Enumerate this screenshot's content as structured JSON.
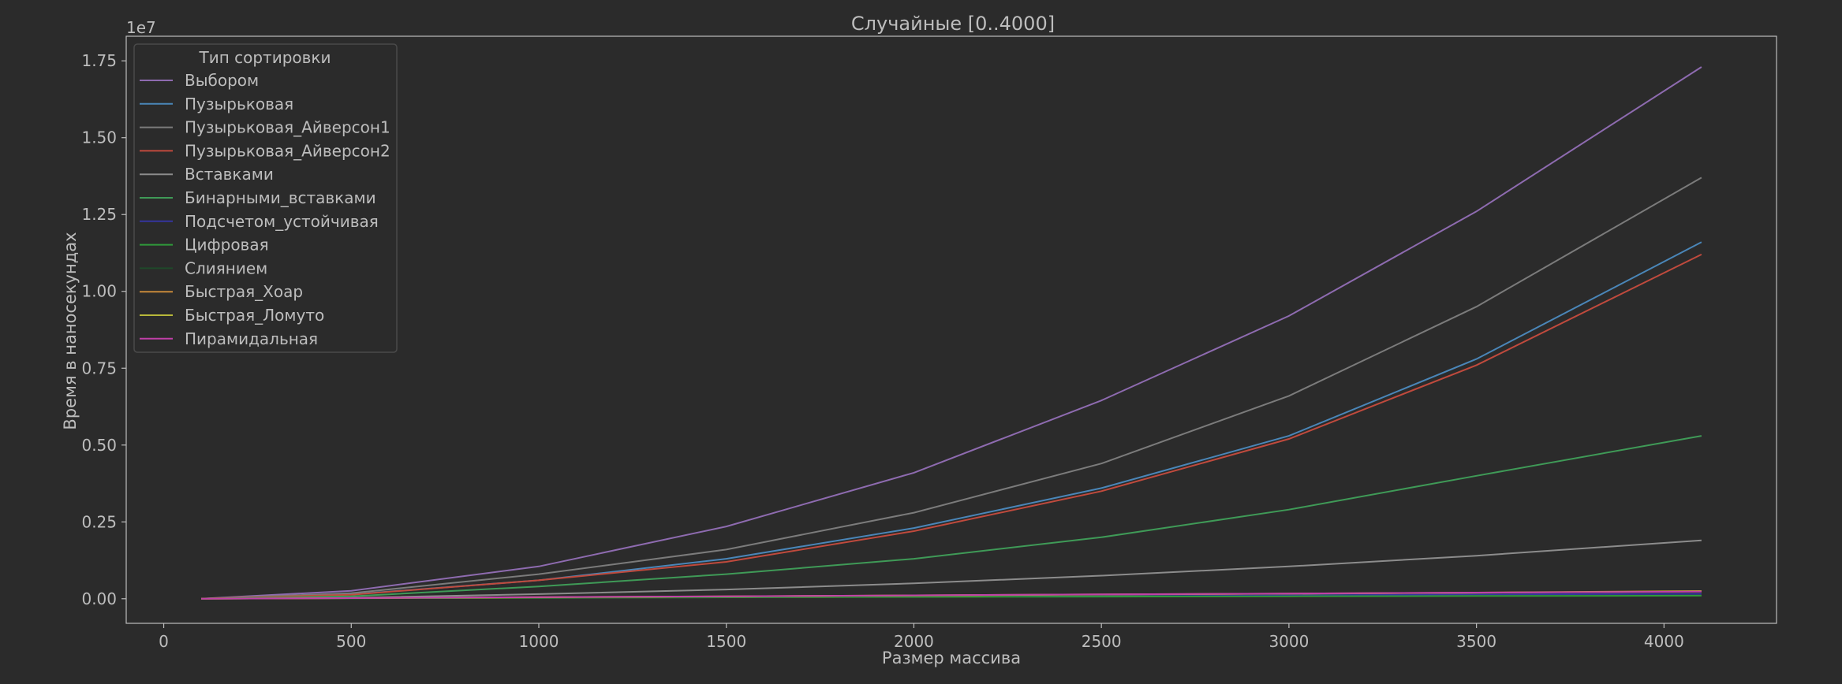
{
  "chart_data": {
    "type": "line",
    "title": "Случайные [0..4000]",
    "xlabel": "Размер массива",
    "ylabel": "Время в наносекундах",
    "y_offset_label": "1e7",
    "xlim": [
      -100,
      4300
    ],
    "ylim": [
      -800000,
      18300000
    ],
    "x_ticks": [
      0,
      500,
      1000,
      1500,
      2000,
      2500,
      3000,
      3500,
      4000
    ],
    "x_tick_labels": [
      "0",
      "500",
      "1000",
      "1500",
      "2000",
      "2500",
      "3000",
      "3500",
      "4000"
    ],
    "y_ticks": [
      0,
      2500000,
      5000000,
      7500000,
      10000000,
      12500000,
      15000000,
      17500000
    ],
    "y_tick_labels": [
      "0.00",
      "0.25",
      "0.50",
      "0.75",
      "1.00",
      "1.25",
      "1.50",
      "1.75"
    ],
    "grid": false,
    "legend_title": "Тип сортировки",
    "legend_position": "top-left",
    "x": [
      100,
      500,
      1000,
      1500,
      2000,
      2500,
      3000,
      3500,
      4100
    ],
    "series": [
      {
        "name": "Выбором",
        "color": "#8e6bb0",
        "values": [
          0,
          260000,
          1050000,
          2350000,
          4100000,
          6450000,
          9200000,
          12600000,
          17300000
        ]
      },
      {
        "name": "Пузырьковая",
        "color": "#4a86b8",
        "values": [
          0,
          140000,
          600000,
          1300000,
          2300000,
          3600000,
          5300000,
          7800000,
          11600000
        ]
      },
      {
        "name": "Пузырьковая_Айверсон1",
        "color": "#7b7b7b",
        "values": [
          0,
          180000,
          800000,
          1600000,
          2800000,
          4400000,
          6600000,
          9500000,
          13700000
        ]
      },
      {
        "name": "Пузырьковая_Айверсон2",
        "color": "#c04a3d",
        "values": [
          0,
          130000,
          600000,
          1200000,
          2200000,
          3500000,
          5200000,
          7600000,
          11200000
        ]
      },
      {
        "name": "Вставками",
        "color": "#8c8c8c",
        "values": [
          0,
          30000,
          150000,
          300000,
          500000,
          750000,
          1050000,
          1400000,
          1900000
        ]
      },
      {
        "name": "Бинарными_вставками",
        "color": "#3f9a57",
        "values": [
          0,
          80000,
          400000,
          800000,
          1300000,
          2000000,
          2900000,
          4000000,
          5300000
        ]
      },
      {
        "name": "Подсчетом_устойчивая",
        "color": "#3535a0",
        "values": [
          0,
          20000,
          40000,
          60000,
          80000,
          100000,
          120000,
          140000,
          160000
        ]
      },
      {
        "name": "Цифровая",
        "color": "#2f9a3a",
        "values": [
          0,
          15000,
          30000,
          45000,
          60000,
          70000,
          80000,
          90000,
          100000
        ]
      },
      {
        "name": "Слиянием",
        "color": "#1f4a2a",
        "values": [
          0,
          20000,
          45000,
          70000,
          100000,
          130000,
          160000,
          190000,
          230000
        ]
      },
      {
        "name": "Быстрая_Хоар",
        "color": "#c8893a",
        "values": [
          0,
          20000,
          50000,
          80000,
          110000,
          140000,
          170000,
          200000,
          250000
        ]
      },
      {
        "name": "Быстрая_Ломуто",
        "color": "#b8b83a",
        "values": [
          0,
          20000,
          45000,
          75000,
          105000,
          135000,
          165000,
          195000,
          240000
        ]
      },
      {
        "name": "Пирамидальная",
        "color": "#c040a8",
        "values": [
          0,
          20000,
          50000,
          80000,
          110000,
          140000,
          170000,
          200000,
          230000
        ]
      }
    ],
    "colors": {
      "background": "#2b2b2b",
      "text": "#bdbdbd",
      "axes_edge": "#bdbdbd",
      "legend_face": "#2b2b2b",
      "legend_edge": "#4a4a4a",
      "teal_line": "#17becf"
    }
  }
}
